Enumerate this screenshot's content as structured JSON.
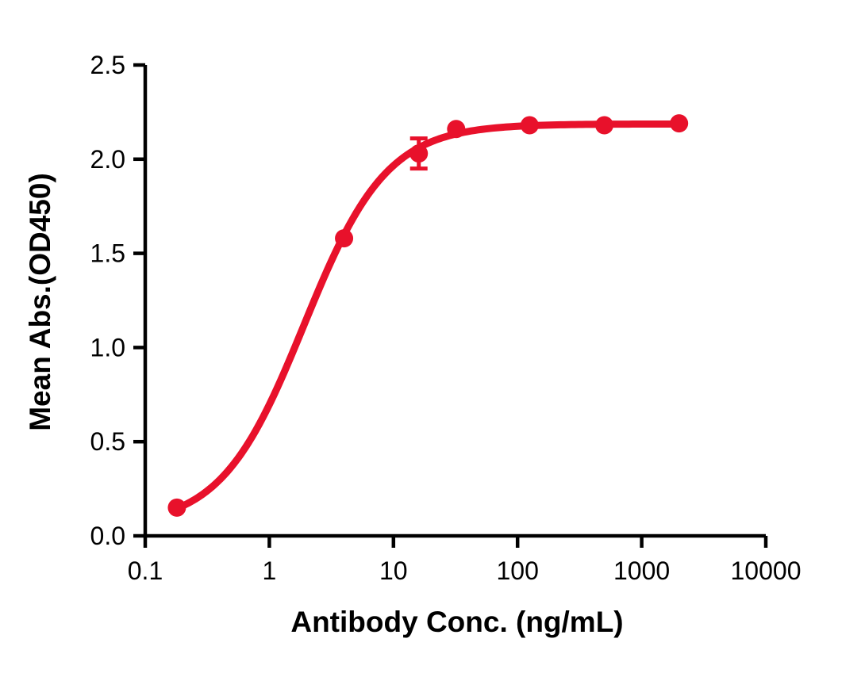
{
  "chart_data": {
    "type": "scatter",
    "subtype": "dose-response-curve",
    "title": "",
    "xlabel": "Antibody Conc. (ng/mL)",
    "ylabel": "Mean Abs.(OD450)",
    "x_scale": "log10",
    "y_scale": "linear",
    "xlim": [
      0.1,
      10000
    ],
    "ylim": [
      0.0,
      2.5
    ],
    "x_ticks": [
      0.1,
      1,
      10,
      100,
      1000,
      10000
    ],
    "x_tick_labels": [
      "0.1",
      "1",
      "10",
      "100",
      "1000",
      "10000"
    ],
    "y_ticks": [
      0.0,
      0.5,
      1.0,
      1.5,
      2.0,
      2.5
    ],
    "y_tick_labels": [
      "0.0",
      "0.5",
      "1.0",
      "1.5",
      "2.0",
      "2.5"
    ],
    "grid": false,
    "legend": "none",
    "colors": {
      "series": "#e8112b",
      "axis": "#000000",
      "background": "#ffffff"
    },
    "series": [
      {
        "name": "Mean Abs.(OD450)",
        "color": "#e8112b",
        "marker": "circle",
        "points": [
          {
            "x": 0.18,
            "y": 0.15
          },
          {
            "x": 4,
            "y": 1.58
          },
          {
            "x": 16,
            "y": 2.03,
            "error": 0.08
          },
          {
            "x": 32,
            "y": 2.16
          },
          {
            "x": 125,
            "y": 2.18
          },
          {
            "x": 500,
            "y": 2.18
          },
          {
            "x": 2000,
            "y": 2.19
          }
        ],
        "fit": {
          "model": "4PL",
          "bottom": 0.05,
          "top": 2.187,
          "ec50": 1.9,
          "hill": 1.3,
          "x_start": 0.18,
          "x_end": 2000
        }
      }
    ]
  }
}
